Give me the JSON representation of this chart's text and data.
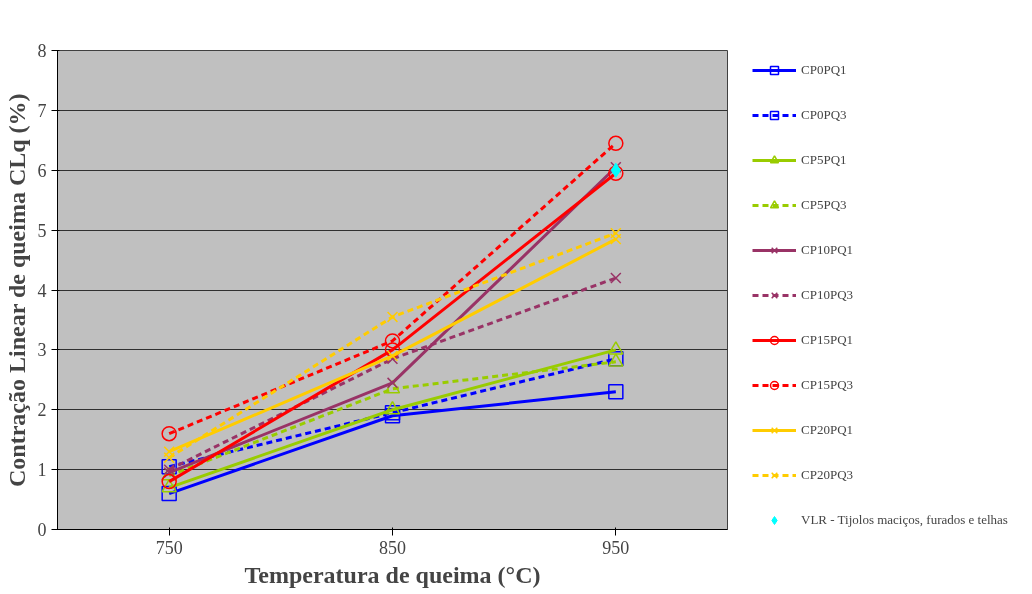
{
  "chart_data": {
    "type": "line",
    "xlabel": "Temperatura de queima (°C)",
    "ylabel": "Contração Linear de queima CLq (%)",
    "categories": [
      "750",
      "850",
      "950"
    ],
    "ylim": [
      0,
      8
    ],
    "yticks": [
      0,
      1,
      2,
      3,
      4,
      5,
      6,
      7,
      8
    ],
    "grid": "y",
    "legend": "right",
    "series": [
      {
        "name": "CP0PQ1",
        "color": "#0000ff",
        "marker": "square",
        "line_style": "solid",
        "values": [
          0.6,
          1.9,
          2.3
        ]
      },
      {
        "name": "CP0PQ3",
        "color": "#0000ff",
        "marker": "square",
        "line_style": "dashed",
        "values": [
          1.05,
          1.95,
          2.85
        ]
      },
      {
        "name": "CP5PQ1",
        "color": "#99cc00",
        "marker": "triangle",
        "line_style": "solid",
        "values": [
          0.7,
          2.0,
          3.0
        ]
      },
      {
        "name": "CP5PQ3",
        "color": "#99cc00",
        "marker": "triangle",
        "line_style": "dashed",
        "values": [
          0.9,
          2.35,
          2.8
        ]
      },
      {
        "name": "CP10PQ1",
        "color": "#993366",
        "marker": "cross",
        "line_style": "solid",
        "values": [
          0.95,
          2.45,
          6.05
        ]
      },
      {
        "name": "CP10PQ3",
        "color": "#993366",
        "marker": "cross",
        "line_style": "dashed",
        "values": [
          1.0,
          2.85,
          4.2
        ]
      },
      {
        "name": "CP15PQ1",
        "color": "#ff0000",
        "marker": "circle",
        "line_style": "solid",
        "values": [
          0.8,
          3.0,
          5.95
        ]
      },
      {
        "name": "CP15PQ3",
        "color": "#ff0000",
        "marker": "circle",
        "line_style": "dashed",
        "values": [
          1.6,
          3.15,
          6.45
        ]
      },
      {
        "name": "CP20PQ1",
        "color": "#ffcc00",
        "marker": "cross",
        "line_style": "solid",
        "values": [
          1.3,
          2.9,
          4.85
        ]
      },
      {
        "name": "CP20PQ3",
        "color": "#ffcc00",
        "marker": "cross",
        "line_style": "dashed",
        "values": [
          1.2,
          3.55,
          4.95
        ]
      },
      {
        "name": "VLR - Tijolos maciços, furados e telhas",
        "type": "scatter",
        "color": "#00ffff",
        "marker": "diamond",
        "values": [
          null,
          null,
          6.0
        ]
      }
    ]
  }
}
